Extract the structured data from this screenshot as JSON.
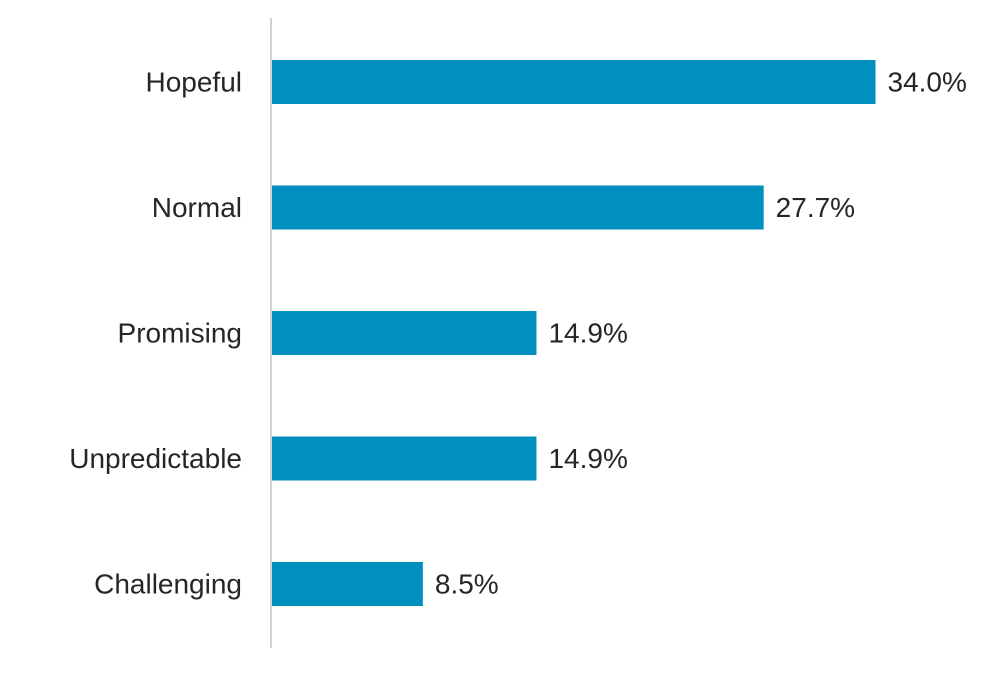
{
  "chart_data": {
    "type": "bar",
    "orientation": "horizontal",
    "title": "",
    "xlabel": "",
    "ylabel": "",
    "categories": [
      "Hopeful",
      "Normal",
      "Promising",
      "Unpredictable",
      "Challenging"
    ],
    "values": [
      34.0,
      27.7,
      14.9,
      14.9,
      8.5
    ],
    "value_labels": [
      "34.0%",
      "27.7%",
      "14.9%",
      "14.9%",
      "8.5%"
    ],
    "unit": "%",
    "xlim": [
      0,
      40
    ],
    "grid": false,
    "legend": "none",
    "colors": {
      "bar": "#008FBE",
      "axis": "#D0D0D0",
      "text": "#262626"
    }
  }
}
